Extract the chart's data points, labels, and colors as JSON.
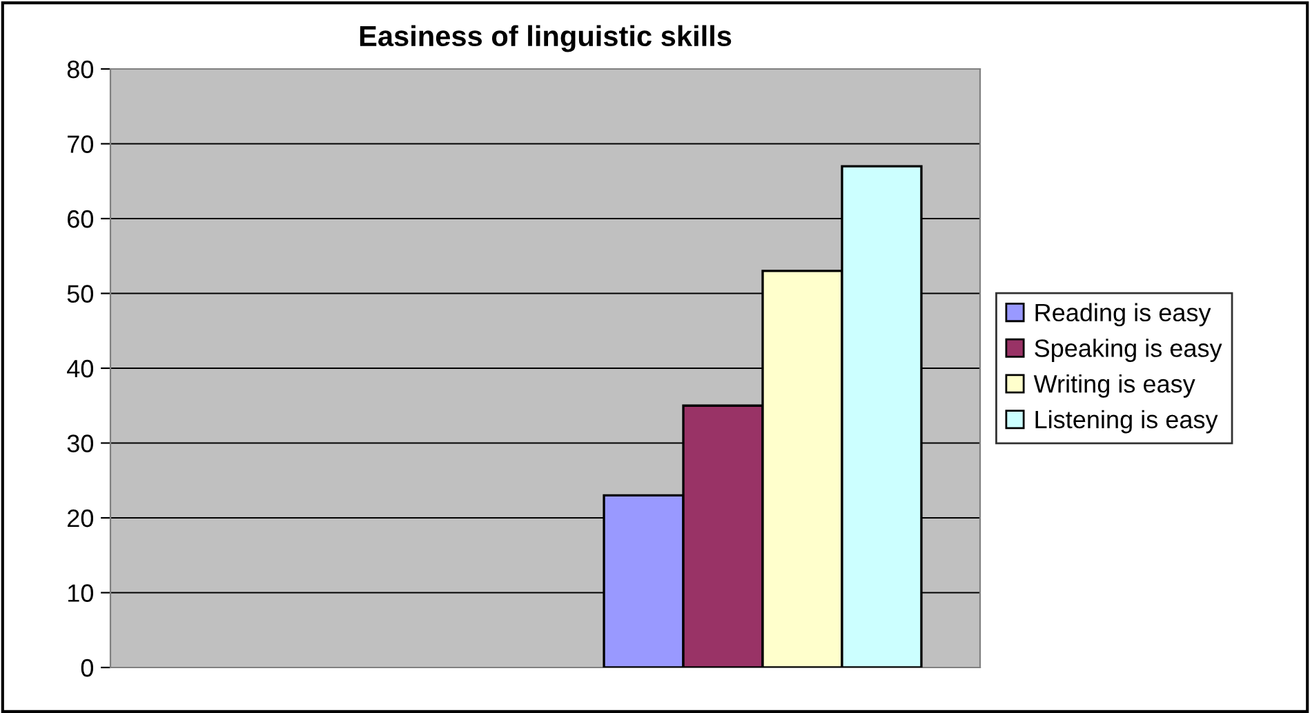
{
  "chart_data": {
    "type": "bar",
    "title": "Easiness of linguistic skills",
    "categories": [
      null,
      null
    ],
    "series": [
      {
        "name": "Reading is easy",
        "color": "#9999ff",
        "values": [
          null,
          23
        ]
      },
      {
        "name": "Speaking is easy",
        "color": "#993366",
        "values": [
          null,
          35
        ]
      },
      {
        "name": "Writing is easy",
        "color": "#ffffcc",
        "values": [
          null,
          53
        ]
      },
      {
        "name": "Listening is easy",
        "color": "#ccffff",
        "values": [
          null,
          67
        ]
      }
    ],
    "ylim": [
      0,
      80
    ],
    "yticks": [
      0,
      10,
      20,
      30,
      40,
      50,
      60,
      70,
      80
    ],
    "grid": "y",
    "legend": "right"
  }
}
